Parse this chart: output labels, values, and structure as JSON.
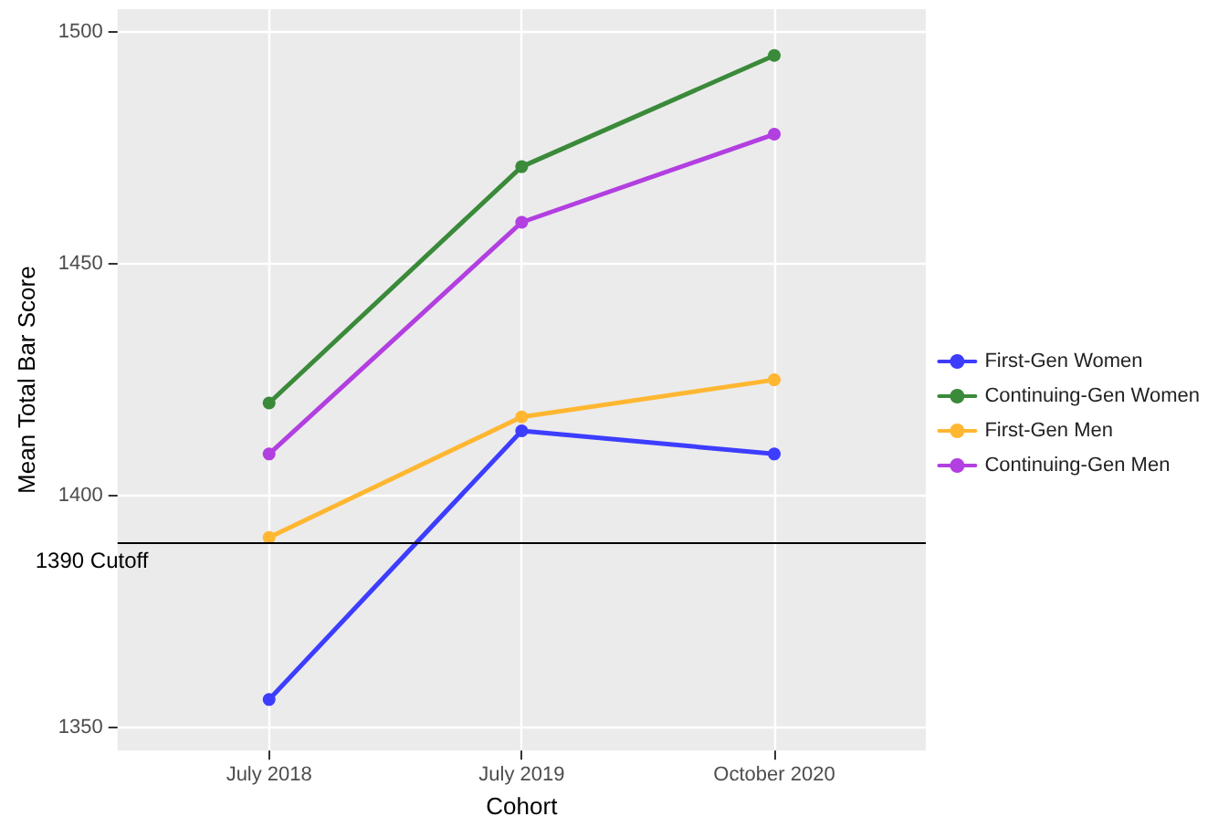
{
  "chart_data": {
    "type": "line",
    "xlabel": "Cohort",
    "ylabel": "Mean Total Bar Score",
    "categories": [
      "July 2018",
      "July 2019",
      "October 2020"
    ],
    "series": [
      {
        "name": "First-Gen Women",
        "color": "#3d3dff",
        "values": [
          1356,
          1414,
          1409
        ]
      },
      {
        "name": "Continuing-Gen Women",
        "color": "#3a8a3a",
        "values": [
          1420,
          1471,
          1495
        ]
      },
      {
        "name": "First-Gen Men",
        "color": "#ffb732",
        "values": [
          1391,
          1417,
          1425
        ]
      },
      {
        "name": "Continuing-Gen Men",
        "color": "#b23fe0",
        "values": [
          1409,
          1459,
          1478
        ]
      }
    ],
    "ylim": [
      1345,
      1505
    ],
    "yticks": [
      1350,
      1400,
      1450,
      1500
    ],
    "ref_lines": [
      {
        "axis": "y",
        "value": 1390,
        "label": "1390 Cutoff",
        "color": "#000000"
      }
    ],
    "grid": true,
    "legend": "right",
    "marker": "circle",
    "line_style": "solid"
  }
}
